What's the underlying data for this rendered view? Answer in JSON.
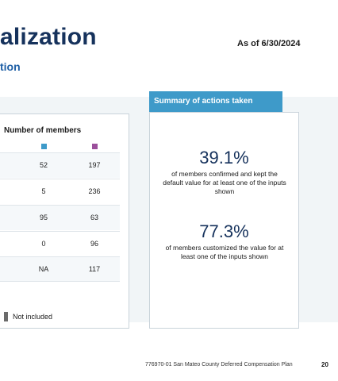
{
  "header": {
    "title": "alization",
    "subtitle": "tion",
    "as_of": "As of 6/30/2024"
  },
  "table": {
    "column_header": "Number of members",
    "legend_colors": [
      "#3e9ac9",
      "#9b4f9b"
    ],
    "rows": [
      {
        "col1": "52",
        "col2": "197"
      },
      {
        "col1": "5",
        "col2": "236"
      },
      {
        "col1": "95",
        "col2": "63"
      },
      {
        "col1": "0",
        "col2": "96"
      },
      {
        "col1": "NA",
        "col2": "117"
      }
    ],
    "legend_label": "Not included"
  },
  "summary": {
    "tab_label": "Summary of actions taken",
    "stat1_value": "39.1%",
    "stat1_desc": "of members confirmed and kept the default value for at least one of the inputs shown",
    "stat2_value": "77.3%",
    "stat2_desc": "of members customized the value for at least one of the inputs shown"
  },
  "footer": {
    "text": "776970-01 San Mateo County Deferred Compensation Plan",
    "page": "20"
  }
}
